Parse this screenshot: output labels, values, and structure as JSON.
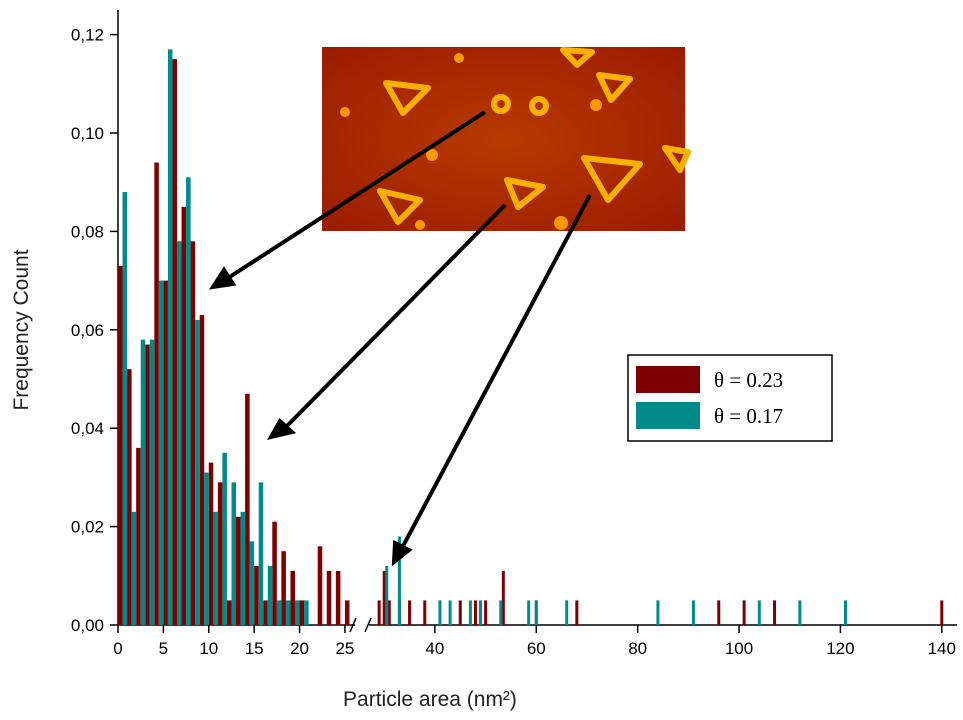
{
  "chart_data": {
    "type": "bar",
    "xlabel": "Particle area (nm²)",
    "ylabel": "Frequency Count",
    "ylim": [
      0,
      0.125
    ],
    "yticks": [
      {
        "value": 0,
        "label": "0,00"
      },
      {
        "value": 0.02,
        "label": "0,02"
      },
      {
        "value": 0.04,
        "label": "0,04"
      },
      {
        "value": 0.06,
        "label": "0,06"
      },
      {
        "value": 0.08,
        "label": "0,08"
      },
      {
        "value": 0.1,
        "label": "0,10"
      },
      {
        "value": 0.12,
        "label": "0,12"
      }
    ],
    "x_segments": [
      {
        "xlim": [
          0,
          26
        ],
        "xticks": [
          0,
          5,
          10,
          15,
          20,
          25
        ]
      },
      {
        "xlim": [
          27,
          143
        ],
        "xticks": [
          40,
          60,
          80,
          100,
          120,
          140
        ]
      }
    ],
    "series": [
      {
        "name": "θ = 0.23",
        "color": "#7f0000",
        "x": [
          0,
          1,
          2,
          3,
          4,
          5,
          6,
          7,
          8,
          9,
          10,
          11,
          12,
          13,
          14,
          15,
          16,
          17,
          18,
          19,
          20,
          22,
          23,
          24,
          25,
          29,
          30,
          31,
          33,
          35,
          38,
          45,
          48,
          50,
          53.5,
          60,
          68,
          96,
          101,
          107,
          140
        ],
        "values": [
          0.073,
          0.052,
          0.036,
          0.057,
          0.094,
          0.07,
          0.115,
          0.085,
          0.078,
          0.063,
          0.033,
          0.029,
          0.005,
          0.022,
          0.047,
          0.012,
          0.005,
          0.021,
          0.015,
          0.011,
          0.005,
          0.016,
          0.011,
          0.011,
          0.005,
          0.005,
          0.011,
          0.005,
          0.005,
          0.005,
          0.005,
          0.005,
          0.005,
          0.005,
          0.011,
          0.005,
          0.005,
          0.005,
          0.005,
          0.005,
          0.005
        ]
      },
      {
        "name": "θ = 0.17",
        "color": "#008b8b",
        "x": [
          0,
          1,
          2,
          3,
          4,
          5,
          6,
          7,
          8,
          9,
          10,
          11,
          12,
          13,
          14,
          15,
          16,
          17,
          18,
          19,
          20,
          30.5,
          33,
          41,
          43,
          47,
          49,
          53,
          58.5,
          60,
          66,
          84,
          91,
          104,
          112,
          121
        ],
        "values": [
          0.088,
          0.023,
          0.058,
          0.058,
          0.07,
          0.117,
          0.078,
          0.091,
          0.062,
          0.031,
          0.023,
          0.035,
          0.029,
          0.023,
          0.017,
          0.029,
          0.012,
          0.005,
          0.005,
          0.005,
          0.005,
          0.012,
          0.018,
          0.005,
          0.005,
          0.005,
          0.005,
          0.005,
          0.005,
          0.005,
          0.005,
          0.005,
          0.005,
          0.005,
          0.005,
          0.005
        ]
      }
    ]
  }
}
